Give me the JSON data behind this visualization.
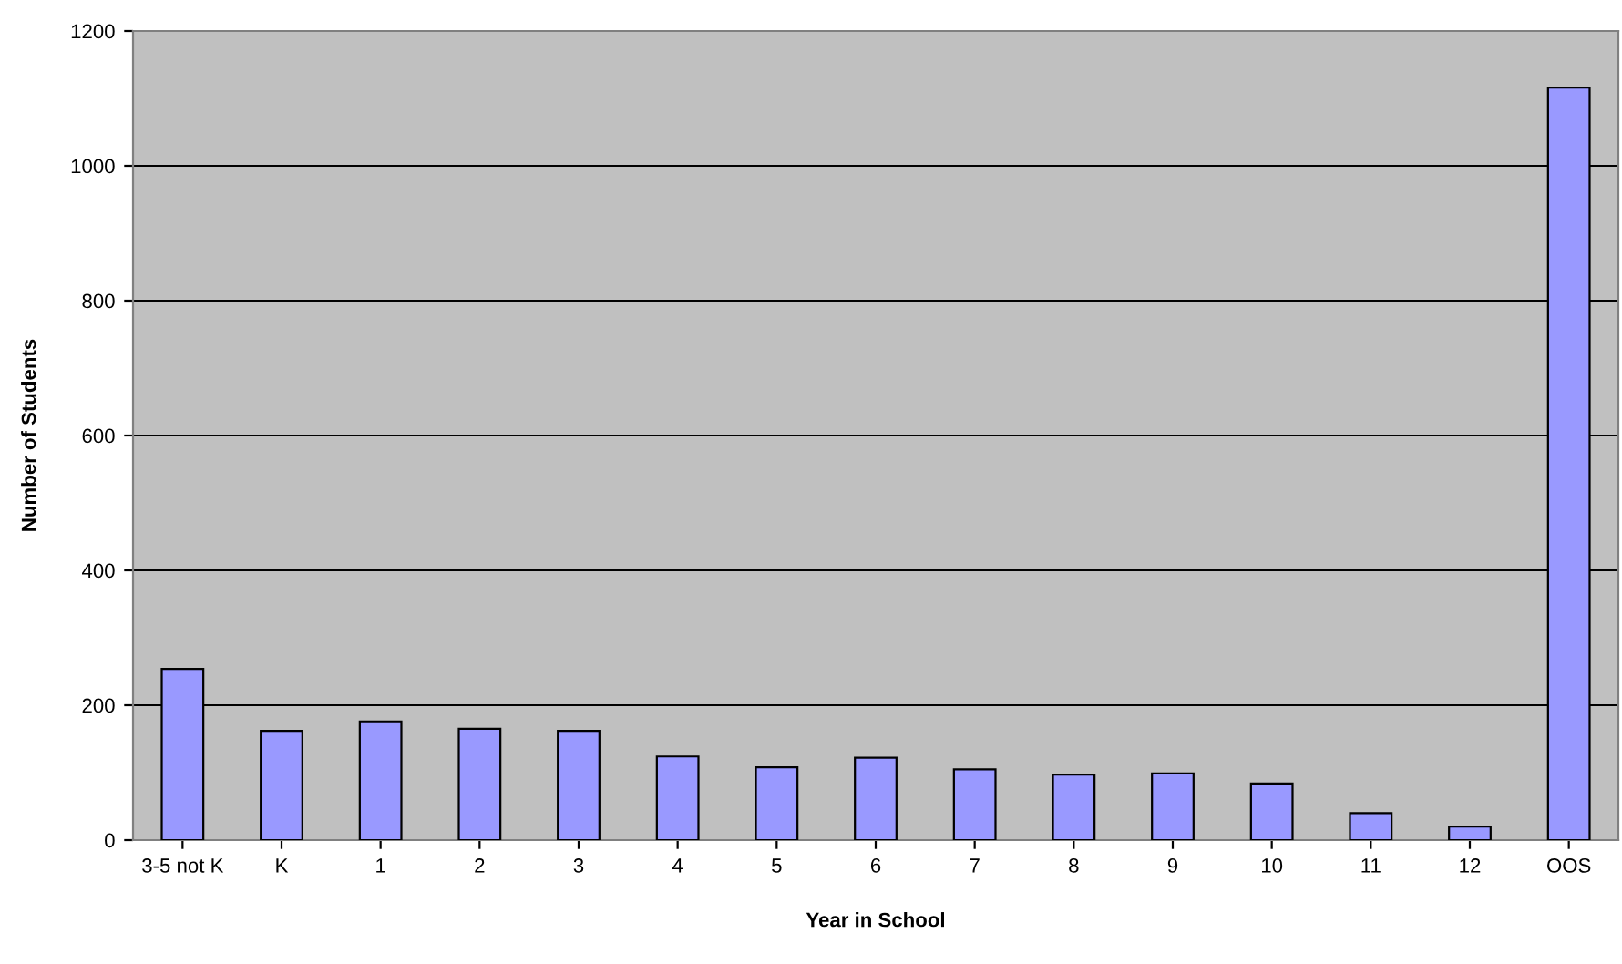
{
  "chart_data": {
    "type": "bar",
    "xlabel": "Year in School",
    "ylabel": "Number of Students",
    "categories": [
      "3-5 not K",
      "K",
      "1",
      "2",
      "3",
      "4",
      "5",
      "6",
      "7",
      "8",
      "9",
      "10",
      "11",
      "12",
      "OOS"
    ],
    "values": [
      254,
      162,
      176,
      165,
      162,
      124,
      108,
      122,
      105,
      97,
      99,
      84,
      40,
      20,
      1116
    ],
    "color": "#9999ff",
    "ylim": [
      0,
      1200
    ],
    "yticks": [
      0,
      200,
      400,
      600,
      800,
      1000,
      1200
    ],
    "grid": "y"
  }
}
